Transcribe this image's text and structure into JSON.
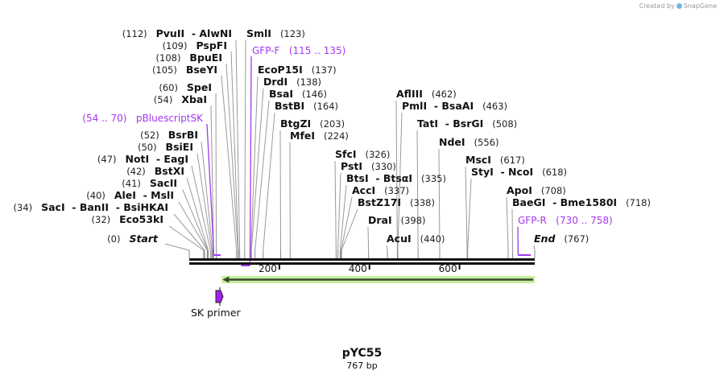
{
  "credit": {
    "prefix": "Created by",
    "brand": "SnapGene"
  },
  "map": {
    "name": "pYC55",
    "length_label": "767 bp",
    "length": 767
  },
  "ticks": [
    {
      "value": 200,
      "label": "200"
    },
    {
      "value": 400,
      "label": "400"
    },
    {
      "value": 600,
      "label": "600"
    }
  ],
  "sites": [
    {
      "pos": 112,
      "pos_label": "(112)",
      "names": [
        "PvuII",
        "AlwNI"
      ]
    },
    {
      "pos": 109,
      "pos_label": "(109)",
      "names": [
        "PspFI"
      ]
    },
    {
      "pos": 108,
      "pos_label": "(108)",
      "names": [
        "BpuEI"
      ]
    },
    {
      "pos": 105,
      "pos_label": "(105)",
      "names": [
        "BseYI"
      ]
    },
    {
      "pos": 60,
      "pos_label": "(60)",
      "names": [
        "SpeI"
      ]
    },
    {
      "pos": 54,
      "pos_label": "(54)",
      "names": [
        "XbaI"
      ]
    },
    {
      "pos": 52,
      "pos_label": "(52)",
      "names": [
        "BsrBI"
      ]
    },
    {
      "pos": 50,
      "pos_label": "(50)",
      "names": [
        "BsiEI"
      ]
    },
    {
      "pos": 47,
      "pos_label": "(47)",
      "names": [
        "NotI",
        "EagI"
      ]
    },
    {
      "pos": 42,
      "pos_label": "(42)",
      "names": [
        "BstXI"
      ]
    },
    {
      "pos": 41,
      "pos_label": "(41)",
      "names": [
        "SacII"
      ]
    },
    {
      "pos": 40,
      "pos_label": "(40)",
      "names": [
        "AleI",
        "MslI"
      ]
    },
    {
      "pos": 34,
      "pos_label": "(34)",
      "names": [
        "SacI",
        "BanII",
        "BsiHKAI"
      ]
    },
    {
      "pos": 32,
      "pos_label": "(32)",
      "names": [
        "Eco53kI"
      ]
    },
    {
      "pos": 0,
      "pos_label": "(0)",
      "names": [
        "Start"
      ],
      "italic": true
    },
    {
      "pos": 123,
      "pos_label": "(123)",
      "names": [
        "SmlI"
      ]
    },
    {
      "pos": 137,
      "pos_label": "(137)",
      "names": [
        "EcoP15I"
      ]
    },
    {
      "pos": 138,
      "pos_label": "(138)",
      "names": [
        "DrdI"
      ]
    },
    {
      "pos": 146,
      "pos_label": "(146)",
      "names": [
        "BsaI"
      ]
    },
    {
      "pos": 164,
      "pos_label": "(164)",
      "names": [
        "BstBI"
      ]
    },
    {
      "pos": 203,
      "pos_label": "(203)",
      "names": [
        "BtgZI"
      ]
    },
    {
      "pos": 224,
      "pos_label": "(224)",
      "names": [
        "MfeI"
      ]
    },
    {
      "pos": 326,
      "pos_label": "(326)",
      "names": [
        "SfcI"
      ]
    },
    {
      "pos": 330,
      "pos_label": "(330)",
      "names": [
        "PstI"
      ]
    },
    {
      "pos": 335,
      "pos_label": "(335)",
      "names": [
        "BtsI",
        "BtsαI"
      ]
    },
    {
      "pos": 337,
      "pos_label": "(337)",
      "names": [
        "AccI"
      ]
    },
    {
      "pos": 338,
      "pos_label": "(338)",
      "names": [
        "BstZ17I"
      ]
    },
    {
      "pos": 398,
      "pos_label": "(398)",
      "names": [
        "DraI"
      ]
    },
    {
      "pos": 440,
      "pos_label": "(440)",
      "names": [
        "AcuI"
      ]
    },
    {
      "pos": 462,
      "pos_label": "(462)",
      "names": [
        "AflIII"
      ]
    },
    {
      "pos": 463,
      "pos_label": "(463)",
      "names": [
        "PmlI",
        "BsaAI"
      ]
    },
    {
      "pos": 508,
      "pos_label": "(508)",
      "names": [
        "TatI",
        "BsrGI"
      ]
    },
    {
      "pos": 556,
      "pos_label": "(556)",
      "names": [
        "NdeI"
      ]
    },
    {
      "pos": 617,
      "pos_label": "(617)",
      "names": [
        "MscI"
      ]
    },
    {
      "pos": 618,
      "pos_label": "(618)",
      "names": [
        "StyI",
        "NcoI"
      ]
    },
    {
      "pos": 708,
      "pos_label": "(708)",
      "names": [
        "ApoI"
      ]
    },
    {
      "pos": 718,
      "pos_label": "(718)",
      "names": [
        "BaeGI",
        "Bme1580I"
      ]
    },
    {
      "pos": 767,
      "pos_label": "(767)",
      "names": [
        "End"
      ],
      "italic": true
    }
  ],
  "primers": [
    {
      "name": "pBluescriptSK",
      "range_label": "(54 .. 70)",
      "start": 54,
      "end": 70
    },
    {
      "name": "GFP-F",
      "range_label": "(115 .. 135)",
      "start": 115,
      "end": 135
    },
    {
      "name": "GFP-R",
      "range_label": "(730 .. 758)",
      "start": 730,
      "end": 758
    }
  ],
  "feature": {
    "start": 72,
    "end": 767,
    "direction": "reverse",
    "color": "#c5ef9d"
  },
  "sk_primer": {
    "label": "SK primer",
    "pos": 59,
    "color": "#a020f0"
  },
  "colors": {
    "primer": "#a238f0",
    "line": "#9a9a9a",
    "backbone": "#111111"
  }
}
